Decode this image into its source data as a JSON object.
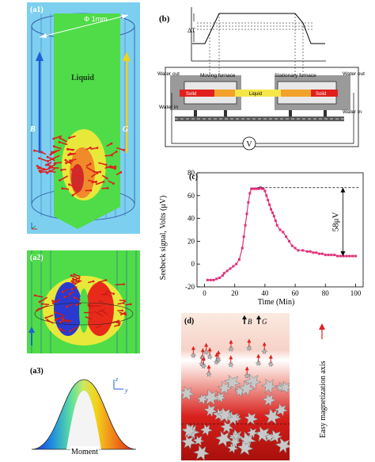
{
  "figure": {
    "a1": {
      "label": "(a1)",
      "dimension": "Φ 1mm",
      "liquid": "Liquid",
      "b_field": "B",
      "g_field": "G",
      "colors": {
        "bg": "#7dcff0",
        "sheet": "#4fdc48",
        "arrow_red": "#e0201c",
        "b_arrow": "#1f5fd6",
        "g_arrow": "#f2d21a"
      }
    },
    "a2": {
      "label": "(a2)"
    },
    "a3": {
      "label": "(a3)",
      "moment": "Moment",
      "axis_z": "z",
      "axis_y": "y"
    },
    "b": {
      "label": "(b)",
      "delta_t": "ΔT",
      "water_out_left": "Water out",
      "water_in_left": "Water in",
      "water_out_right": "Water out",
      "water_in_right": "Water in",
      "moving_furnace": "Moving furnace",
      "stationary_furnace": "Stationary furnace",
      "solid_left": "Solid",
      "liquid_mid": "Liquid",
      "solid_right": "Solid",
      "voltmeter": "V"
    },
    "c": {
      "label": "(c)",
      "annotation": "58μV",
      "series_color": "#e0307a"
    },
    "d": {
      "label": "(d)",
      "b_field": "B",
      "g_field": "G",
      "easy_axis": "Easy magnetization axis"
    }
  },
  "chart_data": {
    "type": "line",
    "title": "",
    "xlabel": "Time (Min)",
    "ylabel": "Seebeck signal, Volts (μV)",
    "xlim": [
      -5,
      105
    ],
    "ylim": [
      -20,
      80
    ],
    "xticks": [
      0,
      20,
      40,
      60,
      80,
      100
    ],
    "yticks": [
      -20,
      0,
      20,
      40,
      60,
      80
    ],
    "grid": false,
    "x": [
      2,
      4,
      6,
      8,
      10,
      12,
      13,
      15,
      17,
      19,
      21,
      23,
      25,
      26,
      27,
      28,
      29,
      30,
      31,
      32,
      33,
      34,
      35,
      36,
      37,
      38,
      39,
      40,
      41,
      42,
      43,
      44,
      45,
      46,
      47,
      48,
      50,
      52,
      54,
      56,
      58,
      60,
      62,
      65,
      68,
      70,
      72,
      74,
      76,
      78,
      80,
      82,
      84,
      86,
      88,
      90,
      92,
      94,
      96,
      98,
      100
    ],
    "y": [
      -14,
      -14,
      -14,
      -13,
      -12,
      -10,
      -8,
      -6,
      -4,
      -2,
      0,
      4,
      14,
      24,
      34,
      44,
      54,
      62,
      66,
      66,
      66,
      66,
      66,
      66,
      67,
      66,
      66,
      64,
      60,
      56,
      52,
      48,
      45,
      42,
      38,
      34,
      30,
      28,
      24,
      20,
      16,
      14,
      12,
      12,
      11,
      11,
      10,
      10,
      9,
      9,
      8,
      8,
      8,
      8,
      7,
      7,
      7,
      7,
      7,
      7,
      7
    ]
  }
}
